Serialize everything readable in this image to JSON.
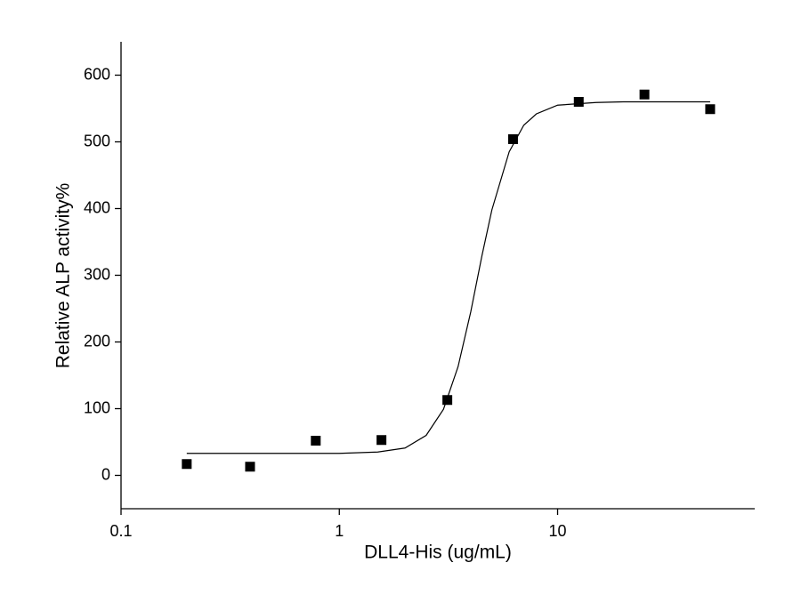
{
  "chart_data": {
    "type": "scatter",
    "x_label": "DLL4-His (ug/mL)",
    "y_label": "Relative ALP activity%",
    "xscale": "log",
    "xlim": [
      0.1,
      80
    ],
    "xticks": [
      0.1,
      1,
      10
    ],
    "ylim": [
      -50,
      650
    ],
    "yticks": [
      0,
      100,
      200,
      300,
      400,
      500,
      600
    ],
    "grid": false,
    "series": [
      {
        "type": "line",
        "color": "#000000",
        "x": [
          0.2,
          0.5,
          1,
          1.5,
          2,
          2.5,
          3,
          3.5,
          4,
          4.5,
          5,
          6,
          7,
          8,
          10,
          15,
          20,
          50
        ],
        "values": [
          33,
          33,
          33,
          35,
          41,
          60,
          99,
          163,
          245,
          329,
          398,
          485,
          525,
          542,
          555,
          559,
          560,
          560
        ]
      },
      {
        "type": "scatter",
        "color": "#000000",
        "x": [
          0.2,
          0.39,
          0.78,
          1.56,
          3.125,
          6.25,
          12.5,
          25,
          50
        ],
        "values": [
          17,
          13,
          52,
          53,
          113,
          504,
          560,
          571,
          549
        ]
      }
    ]
  }
}
